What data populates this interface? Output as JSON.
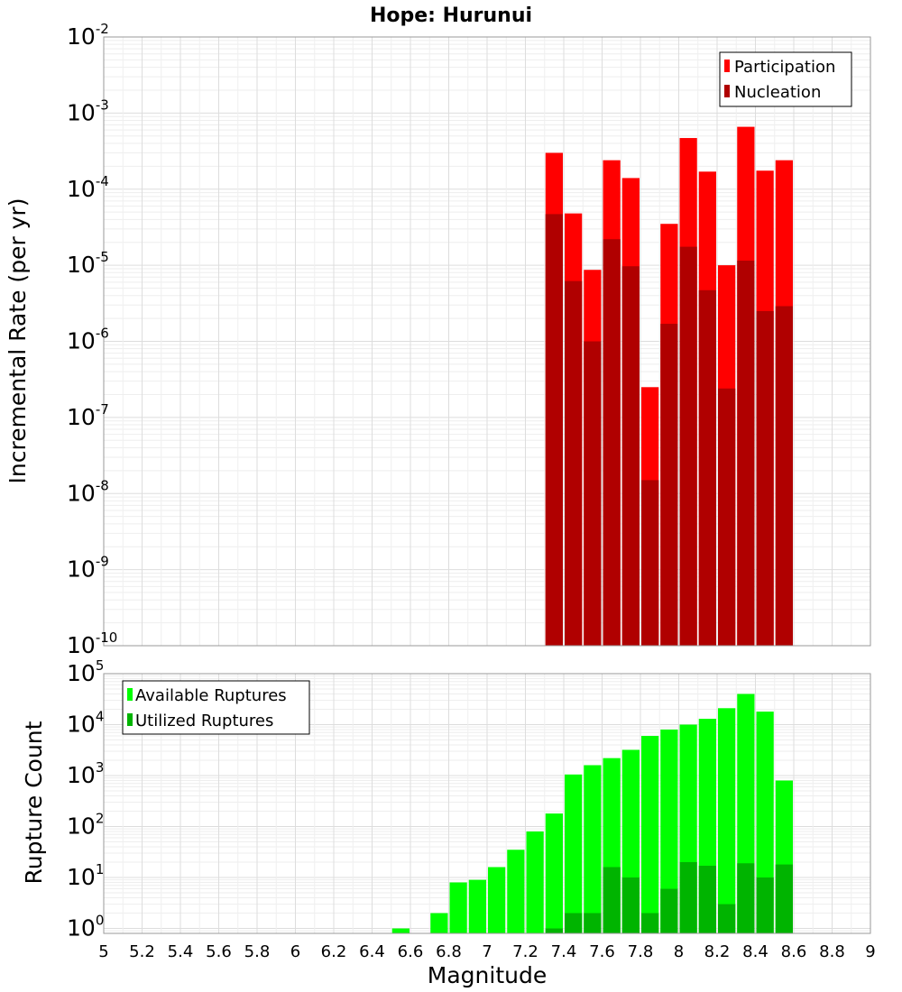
{
  "chart_data": [
    {
      "type": "bar",
      "title": "Hope: Hurunui",
      "ylabel": "Incremental Rate (per yr)",
      "yscale": "log",
      "ylim": [
        1e-10,
        0.01
      ],
      "y_tick_exponents": [
        "-2",
        "-3",
        "-4",
        "-5",
        "-6",
        "-7",
        "-8",
        "-9",
        "-10"
      ],
      "legend": {
        "placement": "top-right",
        "entries": [
          "Participation",
          "Nucleation"
        ]
      },
      "grid": true,
      "series": [
        {
          "name": "Participation",
          "color": "#ff0000",
          "x": [
            7.35,
            7.45,
            7.55,
            7.65,
            7.75,
            7.85,
            7.95,
            8.05,
            8.15,
            8.25,
            8.35,
            8.45,
            8.55
          ],
          "values": [
            0.0003,
            4.8e-05,
            8.7e-06,
            0.00024,
            0.00014,
            2.5e-07,
            3.5e-05,
            0.00047,
            0.00017,
            1e-05,
            0.00066,
            0.000175,
            0.00024
          ]
        },
        {
          "name": "Nucleation",
          "color": "#b00000",
          "x": [
            7.35,
            7.45,
            7.55,
            7.65,
            7.75,
            7.85,
            7.95,
            8.05,
            8.15,
            8.25,
            8.35,
            8.45,
            8.55
          ],
          "values": [
            4.7e-05,
            6.2e-06,
            1e-06,
            2.2e-05,
            9.7e-06,
            1.5e-08,
            1.7e-06,
            1.75e-05,
            4.7e-06,
            2.4e-07,
            1.15e-05,
            2.5e-06,
            2.9e-06
          ]
        }
      ]
    },
    {
      "type": "bar",
      "xlabel": "Magnitude",
      "ylabel": "Rupture Count",
      "yscale": "log",
      "ylim": [
        0.8,
        100000
      ],
      "xlim": [
        5,
        9
      ],
      "x_ticks": [
        "5",
        "5.2",
        "5.4",
        "5.6",
        "5.8",
        "6",
        "6.2",
        "6.4",
        "6.6",
        "6.8",
        "7",
        "7.2",
        "7.4",
        "7.6",
        "7.8",
        "8",
        "8.2",
        "8.4",
        "8.6",
        "8.8",
        "9"
      ],
      "y_tick_exponents": [
        "5",
        "4",
        "3",
        "2",
        "1",
        "0"
      ],
      "legend": {
        "placement": "top-left",
        "entries": [
          "Available Ruptures",
          "Utilized Ruptures"
        ]
      },
      "grid": true,
      "series": [
        {
          "name": "Available Ruptures",
          "color": "#00ff00",
          "x": [
            6.55,
            6.75,
            6.85,
            6.95,
            7.05,
            7.15,
            7.25,
            7.35,
            7.45,
            7.55,
            7.65,
            7.75,
            7.85,
            7.95,
            8.05,
            8.15,
            8.25,
            8.35,
            8.45,
            8.55
          ],
          "values": [
            1,
            2,
            8,
            9,
            16,
            35,
            80,
            180,
            1050,
            1600,
            2200,
            3200,
            6000,
            8000,
            10000,
            13000,
            21000,
            40000,
            18000,
            800
          ]
        },
        {
          "name": "Utilized Ruptures",
          "color": "#00b400",
          "x": [
            7.35,
            7.45,
            7.55,
            7.65,
            7.75,
            7.85,
            7.95,
            8.05,
            8.15,
            8.25,
            8.35,
            8.45,
            8.55
          ],
          "values": [
            1,
            2,
            2,
            16,
            10,
            2,
            6,
            20,
            17,
            3,
            19,
            10,
            18
          ]
        }
      ]
    }
  ]
}
